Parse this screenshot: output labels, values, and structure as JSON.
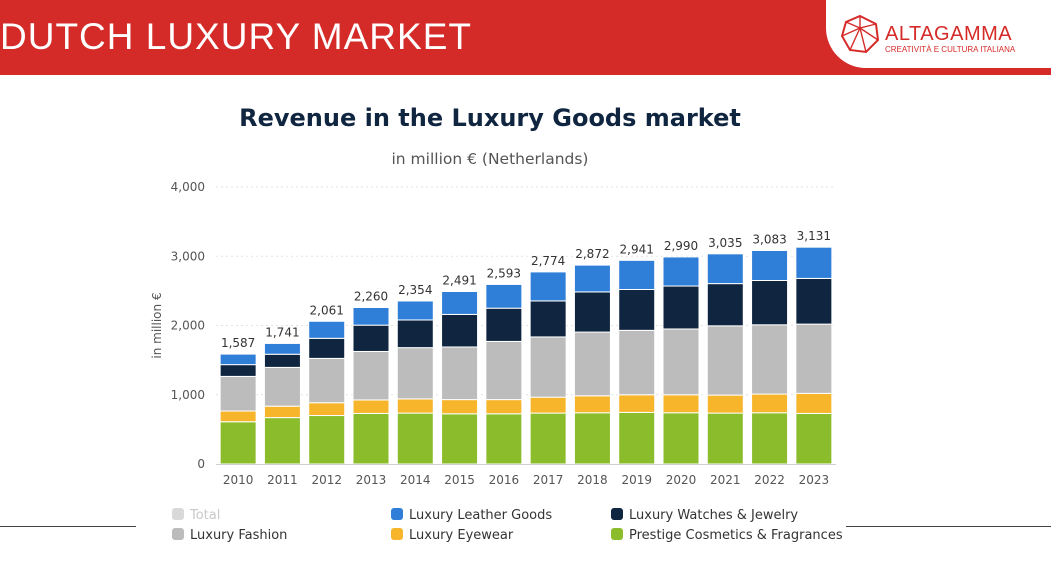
{
  "banner": {
    "title": "DUTCH LUXURY MARKET"
  },
  "logo": {
    "name": "ALTAGAMMA",
    "tagline": "CREATIVITÀ E CULTURA ITALIANA"
  },
  "colors": {
    "banner": "#d52b28",
    "leather": "#2f7ed8",
    "watches": "#0f2540",
    "fashion": "#bcbcbc",
    "eyewear": "#f7b52c",
    "cosmetics": "#8bbc2b",
    "total_disabled": "#d9d9d9"
  },
  "chart_data": {
    "type": "bar",
    "stacked": true,
    "title": "Revenue in the Luxury Goods market",
    "subtitle": "in million € (Netherlands)",
    "xlabel": "",
    "ylabel": "in million €",
    "ylim": [
      0,
      4000
    ],
    "yticks": [
      0,
      1000,
      2000,
      3000,
      4000
    ],
    "ytick_labels": [
      "0",
      "1,000",
      "2,000",
      "3,000",
      "4,000"
    ],
    "categories": [
      "2010",
      "2011",
      "2012",
      "2013",
      "2014",
      "2015",
      "2016",
      "2017",
      "2018",
      "2019",
      "2020",
      "2021",
      "2022",
      "2023"
    ],
    "totals": [
      1587,
      1741,
      2061,
      2260,
      2354,
      2491,
      2593,
      2774,
      2872,
      2941,
      2990,
      3035,
      3083,
      3131
    ],
    "total_labels": [
      "1,587",
      "1,741",
      "2,061",
      "2,260",
      "2,354",
      "2,491",
      "2,593",
      "2,774",
      "2,872",
      "2,941",
      "2,990",
      "3,035",
      "3,083",
      "3,131"
    ],
    "series": [
      {
        "key": "cosmetics",
        "name": "Prestige Cosmetics & Fragrances",
        "values": [
          610,
          670,
          700,
          730,
          735,
          725,
          725,
          735,
          740,
          745,
          740,
          735,
          740,
          730
        ]
      },
      {
        "key": "eyewear",
        "name": "Luxury Eyewear",
        "values": [
          155,
          165,
          185,
          195,
          205,
          205,
          205,
          230,
          245,
          255,
          260,
          260,
          270,
          290
        ]
      },
      {
        "key": "fashion",
        "name": "Luxury Fashion",
        "values": [
          500,
          560,
          640,
          700,
          740,
          760,
          840,
          870,
          920,
          930,
          950,
          1000,
          1000,
          1000
        ]
      },
      {
        "key": "watches",
        "name": "Luxury Watches & Jewelry",
        "values": [
          170,
          190,
          290,
          380,
          400,
          470,
          480,
          520,
          580,
          590,
          620,
          610,
          640,
          660
        ]
      },
      {
        "key": "leather",
        "name": "Luxury Leather Goods",
        "values": [
          152,
          156,
          246,
          255,
          274,
          331,
          343,
          419,
          387,
          421,
          420,
          430,
          433,
          451
        ]
      }
    ],
    "legend": [
      {
        "key": "total",
        "name": "Total",
        "enabled": false
      },
      {
        "key": "leather",
        "name": "Luxury Leather Goods",
        "enabled": true
      },
      {
        "key": "watches",
        "name": "Luxury Watches & Jewelry",
        "enabled": true
      },
      {
        "key": "fashion",
        "name": "Luxury Fashion",
        "enabled": true
      },
      {
        "key": "eyewear",
        "name": "Luxury Eyewear",
        "enabled": true
      },
      {
        "key": "cosmetics",
        "name": "Prestige Cosmetics & Fragrances",
        "enabled": true
      }
    ],
    "legend_position": "bottom"
  }
}
